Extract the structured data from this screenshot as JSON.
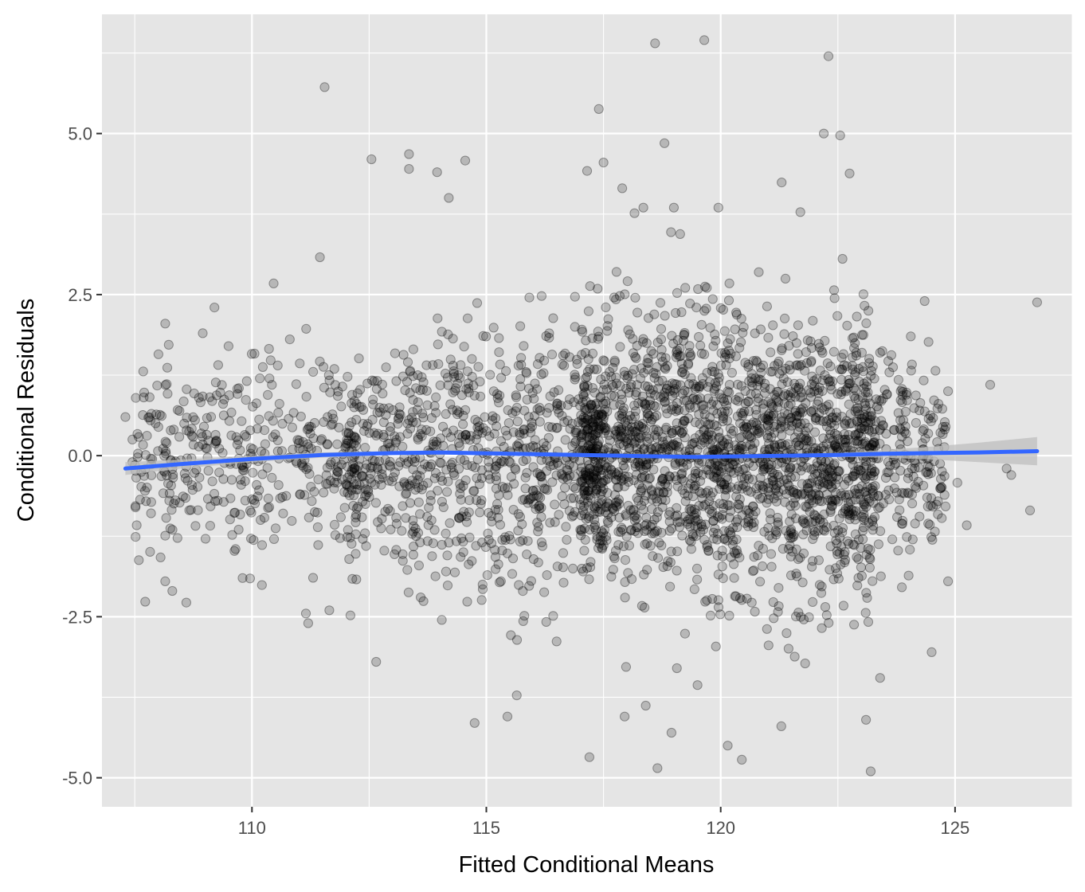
{
  "chart_data": {
    "type": "scatter",
    "title": "",
    "xlabel": "Fitted Conditional Means",
    "ylabel": "Conditional Residuals",
    "xlim": [
      106.8,
      127.5
    ],
    "ylim": [
      -5.45,
      6.85
    ],
    "x_ticks": [
      110,
      115,
      120,
      125
    ],
    "x_tick_labels": [
      "110",
      "115",
      "120",
      "125"
    ],
    "y_ticks": [
      -5,
      -2.5,
      0,
      2.5,
      5
    ],
    "y_tick_labels": [
      "-5.0",
      "-2.5",
      "0.0",
      "2.5",
      "5.0"
    ],
    "grid": true,
    "legend": "none",
    "point_color": "#000000",
    "point_alpha": 0.2,
    "background_color": "#e5e5e5",
    "grid_color": "#ffffff",
    "outlier_points": [
      {
        "x": 111.55,
        "y": 5.72
      },
      {
        "x": 118.6,
        "y": 6.4
      },
      {
        "x": 119.65,
        "y": 6.45
      },
      {
        "x": 122.3,
        "y": 6.2
      },
      {
        "x": 117.4,
        "y": 5.38
      },
      {
        "x": 122.2,
        "y": 5.0
      },
      {
        "x": 122.55,
        "y": 4.97
      },
      {
        "x": 118.8,
        "y": 4.85
      },
      {
        "x": 112.55,
        "y": 4.6
      },
      {
        "x": 113.35,
        "y": 4.68
      },
      {
        "x": 114.55,
        "y": 4.58
      },
      {
        "x": 113.35,
        "y": 4.45
      },
      {
        "x": 113.95,
        "y": 4.4
      },
      {
        "x": 117.15,
        "y": 4.42
      },
      {
        "x": 117.5,
        "y": 4.55
      },
      {
        "x": 122.75,
        "y": 4.38
      },
      {
        "x": 121.3,
        "y": 4.24
      },
      {
        "x": 114.2,
        "y": 4.0
      },
      {
        "x": 117.9,
        "y": 4.15
      },
      {
        "x": 119.95,
        "y": 3.85
      },
      {
        "x": 118.35,
        "y": 3.85
      },
      {
        "x": 119.0,
        "y": 3.85
      },
      {
        "x": 121.7,
        "y": 3.78
      },
      {
        "x": 111.45,
        "y": 3.08
      },
      {
        "x": 124.35,
        "y": 2.4
      },
      {
        "x": 126.75,
        "y": 2.38
      },
      {
        "x": 124.85,
        "y": 1.0
      },
      {
        "x": 125.75,
        "y": 1.1
      },
      {
        "x": 124.8,
        "y": 0.45
      },
      {
        "x": 126.1,
        "y": -0.2
      },
      {
        "x": 126.2,
        "y": -0.3
      },
      {
        "x": 126.6,
        "y": -0.85
      },
      {
        "x": 125.25,
        "y": -1.08
      },
      {
        "x": 125.05,
        "y": -0.42
      },
      {
        "x": 124.85,
        "y": -1.95
      },
      {
        "x": 124.5,
        "y": -3.05
      },
      {
        "x": 123.1,
        "y": -4.1
      },
      {
        "x": 123.2,
        "y": -4.9
      },
      {
        "x": 118.65,
        "y": -4.85
      },
      {
        "x": 120.45,
        "y": -4.72
      },
      {
        "x": 117.2,
        "y": -4.68
      },
      {
        "x": 120.15,
        "y": -4.5
      },
      {
        "x": 118.95,
        "y": -4.3
      },
      {
        "x": 114.75,
        "y": -4.15
      },
      {
        "x": 115.45,
        "y": -4.05
      },
      {
        "x": 117.95,
        "y": -4.05
      },
      {
        "x": 118.4,
        "y": -3.88
      },
      {
        "x": 115.65,
        "y": -3.72
      },
      {
        "x": 112.65,
        "y": -3.2
      },
      {
        "x": 123.4,
        "y": -3.45
      },
      {
        "x": 107.3,
        "y": 0.6
      },
      {
        "x": 107.45,
        "y": -0.1
      },
      {
        "x": 107.7,
        "y": 0.98
      },
      {
        "x": 107.45,
        "y": 0.25
      },
      {
        "x": 108.15,
        "y": 2.05
      },
      {
        "x": 108.95,
        "y": 1.9
      },
      {
        "x": 109.2,
        "y": 2.3
      },
      {
        "x": 108.6,
        "y": -2.28
      },
      {
        "x": 108.15,
        "y": -1.95
      },
      {
        "x": 108.3,
        "y": -2.1
      },
      {
        "x": 111.2,
        "y": -2.6
      },
      {
        "x": 111.15,
        "y": -2.45
      },
      {
        "x": 111.65,
        "y": -2.4
      },
      {
        "x": 112.1,
        "y": -2.48
      },
      {
        "x": 114.05,
        "y": -2.55
      },
      {
        "x": 113.6,
        "y": -2.2
      },
      {
        "x": 110.4,
        "y": 1.48
      },
      {
        "x": 109.5,
        "y": 1.7
      },
      {
        "x": 110.55,
        "y": 1.4
      },
      {
        "x": 109.8,
        "y": -1.9
      },
      {
        "x": 108.05,
        "y": -1.58
      },
      {
        "x": 109.65,
        "y": -1.45
      }
    ],
    "trend_line": {
      "method": "loess",
      "color": "#3366ff",
      "band_color": "#bdbdbd",
      "points": [
        {
          "x": 107.3,
          "y": -0.2,
          "lo": -0.3,
          "hi": -0.1
        },
        {
          "x": 108.5,
          "y": -0.13,
          "lo": -0.2,
          "hi": -0.06
        },
        {
          "x": 110.0,
          "y": -0.05,
          "lo": -0.1,
          "hi": 0.0
        },
        {
          "x": 111.5,
          "y": 0.01,
          "lo": -0.03,
          "hi": 0.05
        },
        {
          "x": 113.0,
          "y": 0.04,
          "lo": 0.01,
          "hi": 0.07
        },
        {
          "x": 114.0,
          "y": 0.05,
          "lo": 0.02,
          "hi": 0.08
        },
        {
          "x": 115.5,
          "y": 0.03,
          "lo": 0.0,
          "hi": 0.06
        },
        {
          "x": 117.0,
          "y": 0.01,
          "lo": -0.02,
          "hi": 0.04
        },
        {
          "x": 118.5,
          "y": -0.01,
          "lo": -0.03,
          "hi": 0.01
        },
        {
          "x": 119.5,
          "y": -0.02,
          "lo": -0.04,
          "hi": 0.0
        },
        {
          "x": 120.5,
          "y": -0.01,
          "lo": -0.03,
          "hi": 0.01
        },
        {
          "x": 121.5,
          "y": 0.0,
          "lo": -0.02,
          "hi": 0.02
        },
        {
          "x": 122.5,
          "y": 0.01,
          "lo": -0.02,
          "hi": 0.04
        },
        {
          "x": 123.5,
          "y": 0.03,
          "lo": -0.03,
          "hi": 0.09
        },
        {
          "x": 124.5,
          "y": 0.04,
          "lo": -0.06,
          "hi": 0.14
        },
        {
          "x": 125.5,
          "y": 0.05,
          "lo": -0.1,
          "hi": 0.2
        },
        {
          "x": 126.75,
          "y": 0.07,
          "lo": -0.15,
          "hi": 0.29
        }
      ]
    }
  }
}
